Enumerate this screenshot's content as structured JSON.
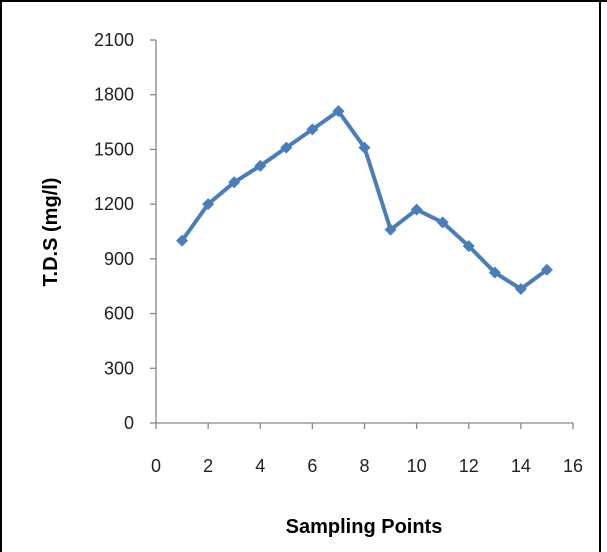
{
  "chart_data": {
    "type": "line",
    "xlabel": "Sampling Points",
    "ylabel": "T.D.S  (mg/l)",
    "xlim": [
      0,
      16
    ],
    "ylim": [
      0,
      2100
    ],
    "x_ticks": [
      0,
      2,
      4,
      6,
      8,
      10,
      12,
      14,
      16
    ],
    "y_ticks": [
      0,
      300,
      600,
      900,
      1200,
      1500,
      1800,
      2100
    ],
    "grid": false,
    "legend": "none",
    "series": [
      {
        "color": "#4a7ebb",
        "marker": "diamond",
        "x": [
          1,
          2,
          3,
          4,
          5,
          6,
          7,
          8,
          9,
          10,
          11,
          12,
          13,
          14,
          15
        ],
        "y": [
          1000,
          1200,
          1320,
          1410,
          1510,
          1610,
          1710,
          1510,
          1060,
          1170,
          1100,
          970,
          825,
          735,
          840
        ]
      }
    ]
  }
}
